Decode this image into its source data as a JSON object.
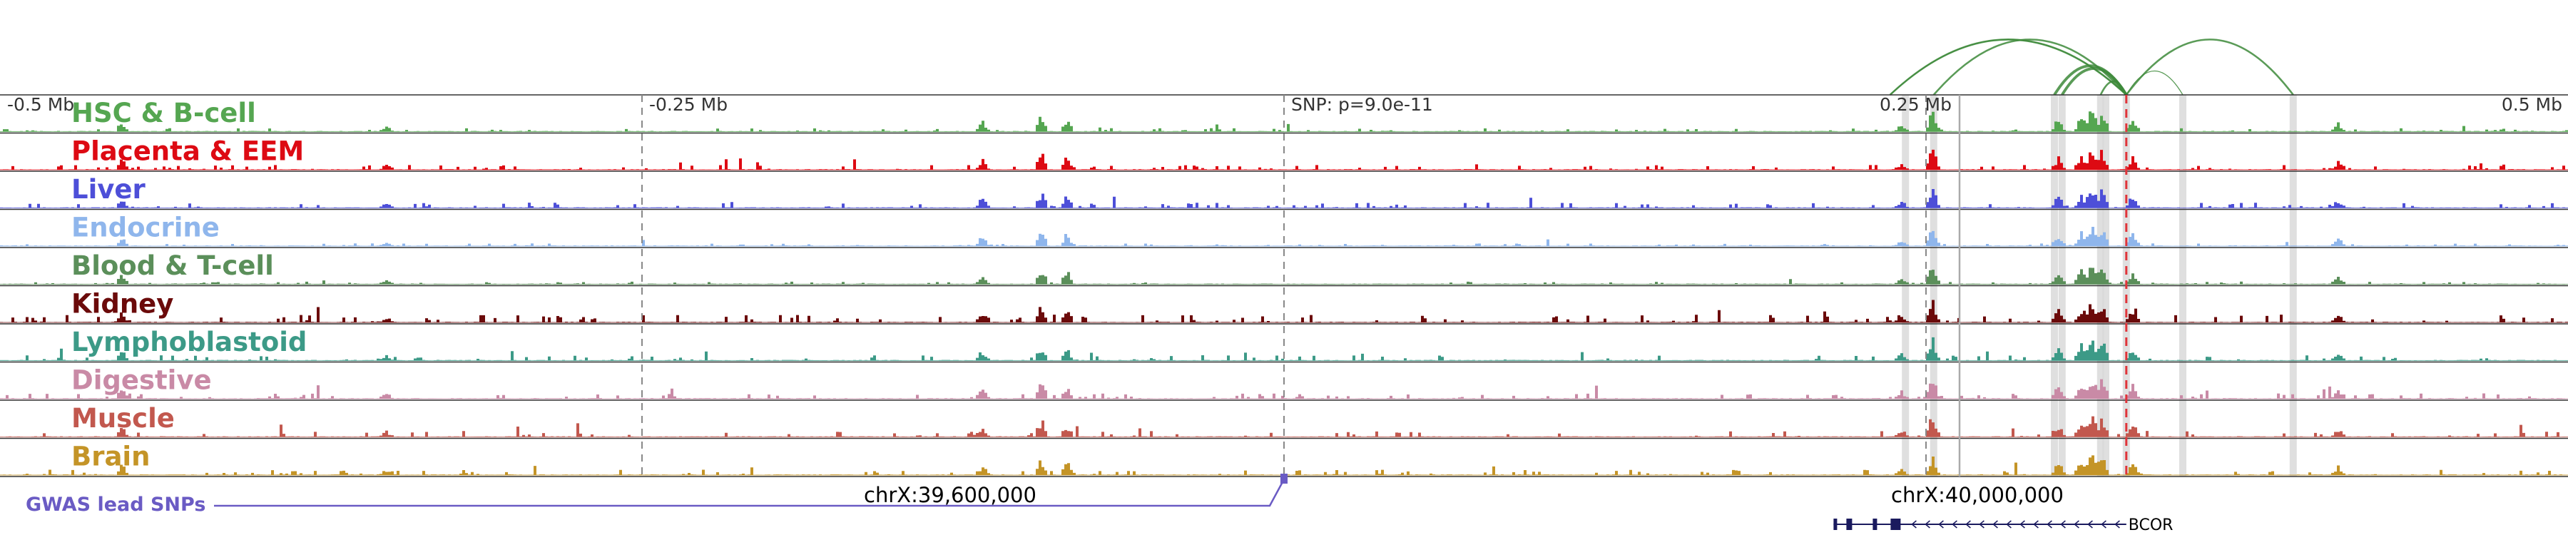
{
  "chart_data": {
    "type": "area",
    "title": "",
    "position_axis": {
      "unit": "Mb offset from lead SNP",
      "range": [
        -0.5,
        0.5
      ],
      "tick_labels": [
        {
          "offset": -0.5,
          "label": "-0.5 Mb"
        },
        {
          "offset": -0.25,
          "label": "-0.25 Mb"
        },
        {
          "offset": 0.0,
          "label": "SNP: p=9.0e-11"
        },
        {
          "offset": 0.25,
          "label": "0.25 Mb"
        },
        {
          "offset": 0.5,
          "label": "0.5 Mb"
        }
      ]
    },
    "genomic_coordinates": [
      {
        "offset": -0.13,
        "label": "chrX:39,600,000"
      },
      {
        "offset": 0.27,
        "label": "chrX:40,000,000"
      }
    ],
    "lead_snp_offset": 0.0,
    "highlight_offsets": [
      0.242,
      0.253,
      0.3,
      0.303,
      0.318,
      0.32,
      0.328,
      0.35,
      0.393
    ],
    "red_marker_offset": 0.328,
    "loops": [
      {
        "from": 0.236,
        "to": 0.328,
        "weight": 1
      },
      {
        "from": 0.236,
        "to": 0.328,
        "weight": 2
      },
      {
        "from": 0.253,
        "to": 0.328,
        "weight": 2
      },
      {
        "from": 0.3,
        "to": 0.328,
        "weight": 3
      },
      {
        "from": 0.303,
        "to": 0.328,
        "weight": 3
      },
      {
        "from": 0.318,
        "to": 0.328,
        "weight": 2
      },
      {
        "from": 0.328,
        "to": 0.35,
        "weight": 1
      },
      {
        "from": 0.328,
        "to": 0.393,
        "weight": 2
      }
    ],
    "peaks": [
      {
        "offset": -0.453,
        "height": 0.35
      },
      {
        "offset": -0.35,
        "height": 0.2
      },
      {
        "offset": -0.118,
        "height": 0.35
      },
      {
        "offset": -0.095,
        "height": 0.6
      },
      {
        "offset": -0.085,
        "height": 0.45
      },
      {
        "offset": 0.24,
        "height": 0.25
      },
      {
        "offset": 0.252,
        "height": 0.75
      },
      {
        "offset": 0.301,
        "height": 0.45
      },
      {
        "offset": 0.31,
        "height": 0.55
      },
      {
        "offset": 0.314,
        "height": 0.85
      },
      {
        "offset": 0.318,
        "height": 0.75
      },
      {
        "offset": 0.33,
        "height": 0.45
      },
      {
        "offset": 0.41,
        "height": 0.3
      }
    ],
    "series": [
      {
        "name": "HSC & B-cell",
        "color": "#55a651",
        "noise": 0.1,
        "seed": 11
      },
      {
        "name": "Placenta & EEM",
        "color": "#dd0a13",
        "noise": 0.14,
        "seed": 23
      },
      {
        "name": "Liver",
        "color": "#4d4fd8",
        "noise": 0.16,
        "seed": 37
      },
      {
        "name": "Endocrine",
        "color": "#8fb6ec",
        "noise": 0.08,
        "seed": 41
      },
      {
        "name": "Blood & T-cell",
        "color": "#5b8f5a",
        "noise": 0.08,
        "seed": 53
      },
      {
        "name": "Kidney",
        "color": "#6b0a0a",
        "noise": 0.22,
        "seed": 67
      },
      {
        "name": "Lymphoblastoid",
        "color": "#3c9a87",
        "noise": 0.16,
        "seed": 71
      },
      {
        "name": "Digestive",
        "color": "#c98aa6",
        "noise": 0.16,
        "seed": 83
      },
      {
        "name": "Muscle",
        "color": "#c2584e",
        "noise": 0.18,
        "seed": 97
      },
      {
        "name": "Brain",
        "color": "#c49427",
        "noise": 0.16,
        "seed": 101
      }
    ],
    "gwas_track": {
      "label": "GWAS lead SNPs",
      "color": "#6a5bc4"
    },
    "gene": {
      "name": "BCOR",
      "start_offset": 0.214,
      "end_offset": 0.328,
      "strand": "-"
    }
  }
}
